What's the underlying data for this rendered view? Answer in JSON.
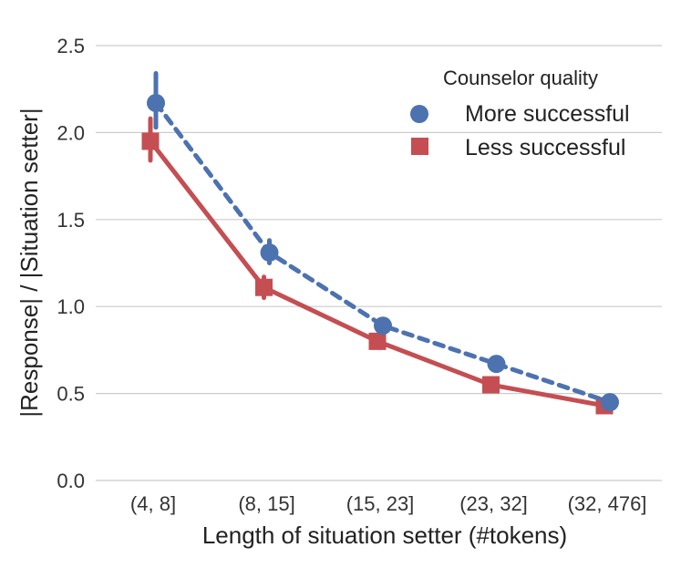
{
  "chart_data": {
    "type": "line",
    "title": "",
    "xlabel": "Length of situation setter (#tokens)",
    "ylabel": "|Response| / |Situation setter|",
    "categories": [
      "(4, 8]",
      "(8, 15]",
      "(15, 23]",
      "(23, 32]",
      "(32, 476]"
    ],
    "ylim": [
      0.0,
      2.5
    ],
    "yticks": [
      "0.0",
      "0.5",
      "1.0",
      "1.5",
      "2.0",
      "2.5"
    ],
    "grid": "horizontal",
    "legend": {
      "title": "Counselor quality",
      "position": "top-right"
    },
    "series": [
      {
        "name": "More successful",
        "color": "#4c72b0",
        "marker": "circle",
        "linestyle": "dashed",
        "values": [
          2.17,
          1.31,
          0.89,
          0.67,
          0.45
        ],
        "err_low": [
          2.03,
          1.25,
          0.87,
          0.65,
          0.44
        ],
        "err_high": [
          2.34,
          1.38,
          0.91,
          0.69,
          0.46
        ]
      },
      {
        "name": "Less successful",
        "color": "#c44e52",
        "marker": "square",
        "linestyle": "solid",
        "values": [
          1.95,
          1.11,
          0.8,
          0.55,
          0.43
        ],
        "err_low": [
          1.84,
          1.05,
          0.78,
          0.54,
          0.42
        ],
        "err_high": [
          2.08,
          1.17,
          0.82,
          0.57,
          0.44
        ]
      }
    ]
  }
}
